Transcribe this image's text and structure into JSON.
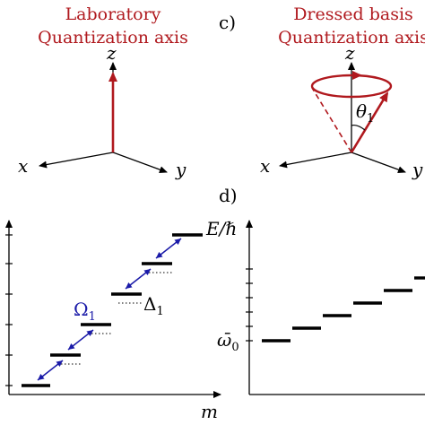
{
  "panel_c": {
    "label": "c)",
    "lab_title_line1": "Laboratory",
    "lab_title_line2": "Quantization axis",
    "dressed_title_line1": "Dressed basis",
    "dressed_title_line2": "Quantization axis",
    "axis_z": "z",
    "axis_x": "x",
    "axis_y": "y",
    "angle": "θ",
    "angle_sub": "1"
  },
  "panel_d": {
    "label": "d)",
    "y_label": "E/ℏ",
    "x_label": "m",
    "rabi": "Ω",
    "rabi_sub": "1",
    "detuning": "Δ",
    "detuning_sub": "1",
    "omega0": "ω̄",
    "omega0_sub": "0"
  },
  "colors": {
    "red": "#b0191e",
    "blue": "#1a1aa8",
    "black": "#000000"
  }
}
